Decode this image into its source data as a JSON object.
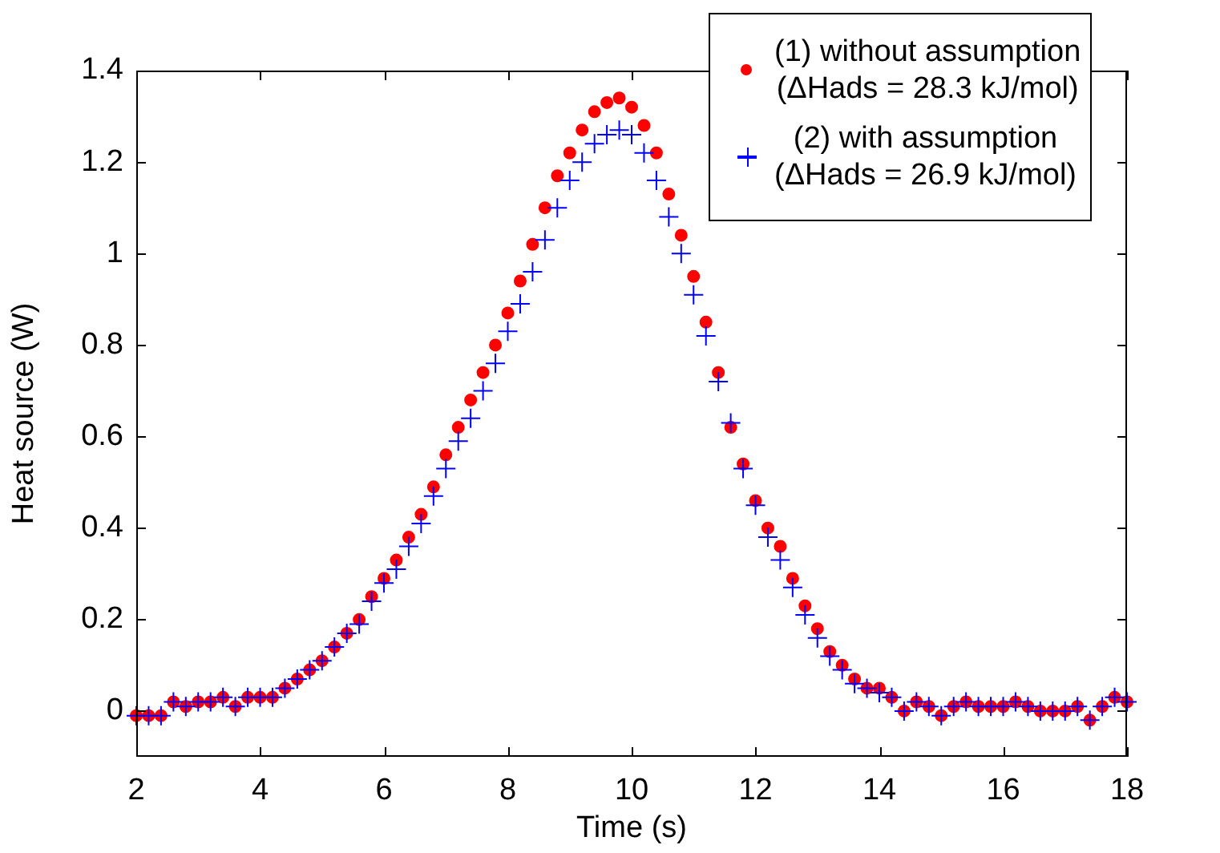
{
  "chart_data": {
    "type": "scatter",
    "xlabel": "Time (s)",
    "ylabel": "Heat source (W)",
    "xlim": [
      2,
      18
    ],
    "xticks": [
      2,
      4,
      6,
      8,
      10,
      12,
      14,
      16,
      18
    ],
    "ylim": [
      -0.1,
      1.4
    ],
    "yticks": [
      0,
      0.2,
      0.4,
      0.6,
      0.8,
      1,
      1.2,
      1.4
    ],
    "grid": false,
    "legend": "top right",
    "x": [
      2,
      2.2,
      2.4,
      2.6,
      2.8,
      3,
      3.2,
      3.4,
      3.6,
      3.8,
      4,
      4.2,
      4.4,
      4.6,
      4.8,
      5,
      5.2,
      5.4,
      5.6,
      5.8,
      6,
      6.2,
      6.4,
      6.6,
      6.8,
      7,
      7.2,
      7.4,
      7.6,
      7.8,
      8,
      8.2,
      8.4,
      8.6,
      8.8,
      9,
      9.2,
      9.4,
      9.6,
      9.8,
      10,
      10.2,
      10.4,
      10.6,
      10.8,
      11,
      11.2,
      11.4,
      11.6,
      11.8,
      12,
      12.2,
      12.4,
      12.6,
      12.8,
      13,
      13.2,
      13.4,
      13.6,
      13.8,
      14,
      14.2,
      14.4,
      14.6,
      14.8,
      15,
      15.2,
      15.4,
      15.6,
      15.8,
      16,
      16.2,
      16.4,
      16.6,
      16.8,
      17,
      17.2,
      17.4,
      17.6,
      17.8,
      18
    ],
    "series": [
      {
        "name": "(1) without assumption\n(ΔHads = 28.3 kJ/mol)",
        "color": "#ff0000",
        "marker": "circle",
        "values": [
          -0.01,
          -0.01,
          -0.01,
          0.02,
          0.01,
          0.02,
          0.02,
          0.03,
          0.01,
          0.03,
          0.03,
          0.03,
          0.05,
          0.07,
          0.09,
          0.11,
          0.14,
          0.17,
          0.2,
          0.25,
          0.29,
          0.33,
          0.38,
          0.43,
          0.49,
          0.56,
          0.62,
          0.68,
          0.74,
          0.8,
          0.87,
          0.94,
          1.02,
          1.1,
          1.17,
          1.22,
          1.27,
          1.31,
          1.33,
          1.34,
          1.32,
          1.28,
          1.22,
          1.13,
          1.04,
          0.95,
          0.85,
          0.74,
          0.62,
          0.54,
          0.46,
          0.4,
          0.36,
          0.29,
          0.23,
          0.18,
          0.13,
          0.1,
          0.07,
          0.05,
          0.05,
          0.03,
          0,
          0.02,
          0.01,
          -0.01,
          0.01,
          0.02,
          0.01,
          0.01,
          0.01,
          0.02,
          0.01,
          0,
          0,
          0,
          0.01,
          -0.02,
          0.01,
          0.03,
          0.02
        ]
      },
      {
        "name": "(2) with assumption\n(ΔHads = 26.9 kJ/mol)",
        "color": "#0000ff",
        "marker": "cross",
        "values": [
          -0.01,
          -0.01,
          -0.01,
          0.02,
          0.01,
          0.02,
          0.02,
          0.03,
          0.01,
          0.03,
          0.03,
          0.03,
          0.05,
          0.07,
          0.09,
          0.11,
          0.14,
          0.17,
          0.19,
          0.24,
          0.28,
          0.31,
          0.36,
          0.41,
          0.47,
          0.53,
          0.59,
          0.64,
          0.7,
          0.76,
          0.83,
          0.89,
          0.96,
          1.03,
          1.1,
          1.16,
          1.2,
          1.24,
          1.26,
          1.27,
          1.26,
          1.22,
          1.16,
          1.08,
          1,
          0.91,
          0.82,
          0.72,
          0.63,
          0.53,
          0.45,
          0.38,
          0.33,
          0.27,
          0.21,
          0.16,
          0.12,
          0.09,
          0.06,
          0.05,
          0.04,
          0.03,
          0,
          0.02,
          0.01,
          -0.01,
          0.01,
          0.02,
          0.01,
          0.01,
          0.01,
          0.02,
          0.01,
          0,
          0,
          0,
          0.01,
          -0.02,
          0.01,
          0.03,
          0.02
        ]
      }
    ]
  }
}
